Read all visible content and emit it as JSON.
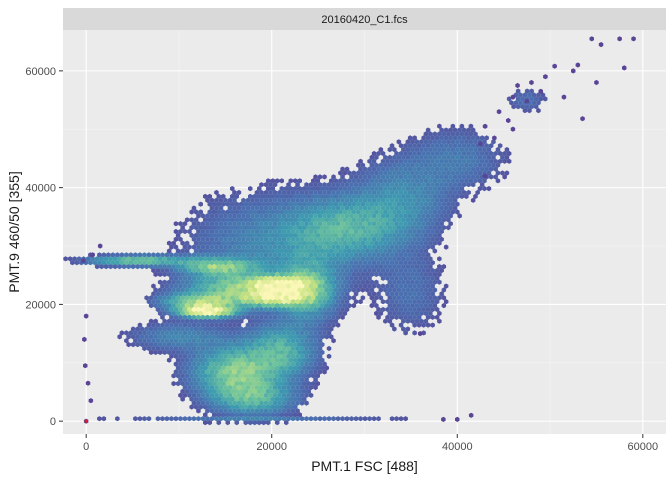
{
  "chart_data": {
    "type": "heatmap",
    "subtype": "hexbin-density",
    "facet_label": "20160420_C1.fcs",
    "xlabel": "PMT.1 FSC [488]",
    "ylabel": "PMT.9 460/50 [355]",
    "xlim": [
      -2500,
      62500
    ],
    "ylim": [
      -2200,
      67000
    ],
    "x_ticks": [
      0,
      20000,
      40000,
      60000
    ],
    "y_ticks": [
      0,
      20000,
      40000,
      60000
    ],
    "x_tick_labels": [
      "0",
      "20000",
      "40000",
      "60000"
    ],
    "y_tick_labels": [
      "0",
      "20000",
      "40000",
      "60000"
    ],
    "grid": true,
    "legend": "none",
    "colorscale": [
      "#5b3f93",
      "#4a6fb0",
      "#3c9bb0",
      "#6cc39a",
      "#c6e27e",
      "#fbf7b5"
    ],
    "colors": {
      "panel_bg": "#ebebeb",
      "strip_bg": "#d9d9d9",
      "grid_major": "#ffffff"
    },
    "density_clusters": [
      {
        "x": 13000,
        "y": 18800,
        "sx": 2000,
        "sy": 700,
        "peak": 1.0
      },
      {
        "x": 20500,
        "y": 21000,
        "sx": 2500,
        "sy": 1000,
        "peak": 0.65
      },
      {
        "x": 21000,
        "y": 23500,
        "sx": 2200,
        "sy": 900,
        "peak": 0.6
      },
      {
        "x": 17000,
        "y": 23000,
        "sx": 4000,
        "sy": 1600,
        "peak": 0.5
      },
      {
        "x": 12500,
        "y": 20500,
        "sx": 2800,
        "sy": 1000,
        "peak": 0.55
      },
      {
        "x": 14000,
        "y": 26500,
        "sx": 2600,
        "sy": 1000,
        "peak": 0.5
      },
      {
        "x": 5500,
        "y": 27500,
        "sx": 3500,
        "sy": 600,
        "peak": 0.5
      },
      {
        "x": 16000,
        "y": 8500,
        "sx": 3000,
        "sy": 2800,
        "peak": 0.55
      },
      {
        "x": 21000,
        "y": 12000,
        "sx": 2500,
        "sy": 3000,
        "peak": 0.4
      },
      {
        "x": 18000,
        "y": 4000,
        "sx": 3000,
        "sy": 2000,
        "peak": 0.4
      },
      {
        "x": 24000,
        "y": 22500,
        "sx": 2000,
        "sy": 3500,
        "peak": 0.4
      },
      {
        "x": 28000,
        "y": 33000,
        "sx": 4000,
        "sy": 3500,
        "peak": 0.35
      },
      {
        "x": 34000,
        "y": 38000,
        "sx": 3500,
        "sy": 4500,
        "peak": 0.22
      },
      {
        "x": 40000,
        "y": 45000,
        "sx": 3500,
        "sy": 3500,
        "peak": 0.15
      },
      {
        "x": 20000,
        "y": 30000,
        "sx": 6000,
        "sy": 6000,
        "peak": 0.2
      },
      {
        "x": 18000,
        "y": 160,
        "sx": 11000,
        "sy": 180,
        "peak": 0.35
      },
      {
        "x": 10000,
        "y": 14500,
        "sx": 3500,
        "sy": 1600,
        "peak": 0.2
      },
      {
        "x": 47500,
        "y": 55000,
        "sx": 1400,
        "sy": 1400,
        "peak": 0.12
      },
      {
        "x": 35000,
        "y": 22000,
        "sx": 2500,
        "sy": 5000,
        "peak": 0.12
      }
    ],
    "sparse_points": [
      [
        54500,
        65500
      ],
      [
        55500,
        64500
      ],
      [
        57500,
        65500
      ],
      [
        59000,
        65500
      ],
      [
        58000,
        60500
      ],
      [
        53000,
        61000
      ],
      [
        52500,
        60000
      ],
      [
        55000,
        58000
      ],
      [
        50500,
        60800
      ],
      [
        49500,
        59000
      ],
      [
        48000,
        58000
      ],
      [
        46500,
        57500
      ],
      [
        49000,
        56500
      ],
      [
        47500,
        54800
      ],
      [
        44500,
        53000
      ],
      [
        46000,
        55500
      ],
      [
        53500,
        51800
      ],
      [
        51500,
        55500
      ],
      [
        45500,
        51500
      ],
      [
        41500,
        1000
      ],
      [
        40000,
        300
      ],
      [
        38500,
        300
      ],
      [
        44000,
        48500
      ],
      [
        46000,
        50000
      ],
      [
        43000,
        50500
      ],
      [
        42500,
        47500
      ],
      [
        0,
        0
      ],
      [
        -200,
        14000
      ],
      [
        -100,
        9500
      ],
      [
        0,
        18000
      ],
      [
        -300,
        27500
      ],
      [
        700,
        28500
      ],
      [
        500,
        3500
      ],
      [
        200,
        6500
      ],
      [
        1500,
        30000
      ],
      [
        36000,
        15000
      ],
      [
        43000,
        42000
      ]
    ],
    "red_point": [
      0,
      0
    ]
  }
}
